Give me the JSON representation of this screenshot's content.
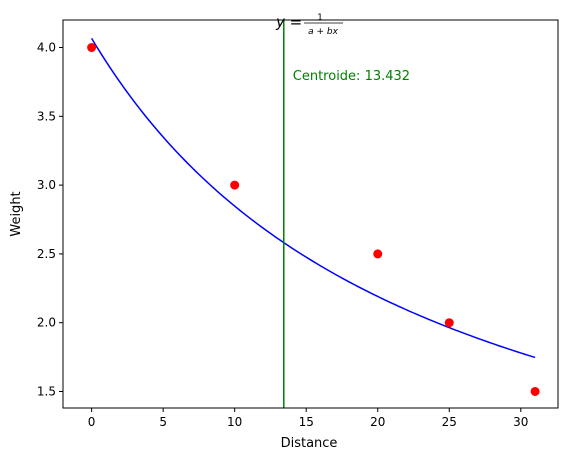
{
  "chart_data": {
    "type": "scatter",
    "title_prefix": "y = ",
    "title_numerator": "1",
    "title_denominator": "a + bx",
    "xlabel": "Distance",
    "ylabel": "Weight",
    "xlim": [
      -2.0,
      32.6
    ],
    "ylim": [
      1.38,
      4.2
    ],
    "xticks": [
      0,
      5,
      10,
      15,
      20,
      25,
      30
    ],
    "yticks": [
      1.5,
      2.0,
      2.5,
      3.0,
      3.5,
      4.0
    ],
    "xtick_labels": [
      "0",
      "5",
      "10",
      "15",
      "20",
      "25",
      "30"
    ],
    "ytick_labels": [
      "1.5",
      "2.0",
      "2.5",
      "3.0",
      "3.5",
      "4.0"
    ],
    "grid": false,
    "points": {
      "x": [
        0,
        10,
        20,
        25,
        31
      ],
      "y": [
        4.0,
        3.0,
        2.5,
        2.0,
        1.5
      ],
      "color": "#ff0000"
    },
    "fit_curve": {
      "model": "1/(a+bx)",
      "a": 0.2459,
      "b": 0.01053,
      "x_range": [
        0,
        31
      ],
      "color": "#0000ff"
    },
    "centroid_line": {
      "x": 13.432,
      "label": "Centroide: 13.432",
      "color": "#007f00"
    }
  }
}
